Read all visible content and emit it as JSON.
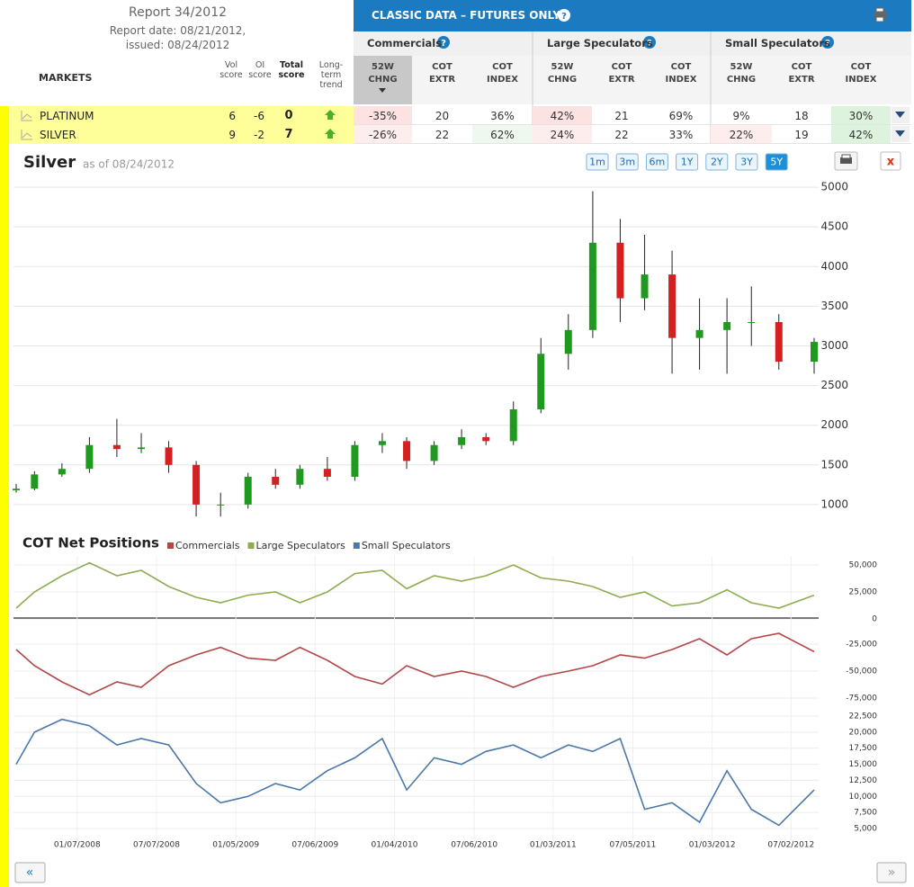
{
  "header": {
    "report": "Report 34/2012",
    "report_date": "Report date: 08/21/2012,",
    "issued": "issued: 08/24/2012",
    "markets": "MARKETS",
    "scores": [
      "Vol score",
      "OI score",
      "Total score",
      "Long-term trend"
    ]
  },
  "classic": {
    "title": "CLASSIC DATA – FUTURES ONLY",
    "groups": [
      "Commercials",
      "Large Speculators",
      "Small Speculators"
    ],
    "columns": [
      "52W CHNG",
      "COT EXTR",
      "COT INDEX"
    ]
  },
  "rows": [
    {
      "market": "PLATINUM",
      "vol": 6,
      "oi": -6,
      "total": 0,
      "cells": [
        "-35%",
        "20",
        "36%",
        "42%",
        "21",
        "69%",
        "9%",
        "18",
        "30%"
      ]
    },
    {
      "market": "SILVER",
      "vol": 9,
      "oi": -2,
      "total": 7,
      "cells": [
        "-26%",
        "22",
        "62%",
        "24%",
        "22",
        "33%",
        "22%",
        "19",
        "42%"
      ]
    }
  ],
  "price_chart": {
    "type": "candlestick",
    "title": "Silver",
    "as_of": "as of 08/24/2012",
    "ranges": [
      "1m",
      "3m",
      "6m",
      "1Y",
      "2Y",
      "3Y",
      "5Y"
    ],
    "active_range": 6,
    "x": [
      "2007-08-20",
      "2007-10-01",
      "2007-12-03",
      "2008-02-04",
      "2008-04-07",
      "2008-06-02",
      "2008-08-04",
      "2008-10-06",
      "2008-12-01",
      "2009-02-02",
      "2009-04-06",
      "2009-06-01",
      "2009-08-03",
      "2009-10-05",
      "2009-12-07",
      "2010-02-01",
      "2010-04-05",
      "2010-06-07",
      "2010-08-02",
      "2010-10-04",
      "2010-12-06",
      "2011-02-07",
      "2011-04-04",
      "2011-06-06",
      "2011-08-01",
      "2011-10-03",
      "2011-12-05",
      "2012-02-06",
      "2012-04-02",
      "2012-06-04",
      "2012-08-24"
    ],
    "open": [
      1180,
      1200,
      1380,
      1450,
      1750,
      1700,
      1720,
      1500,
      1000,
      1000,
      1350,
      1250,
      1450,
      1350,
      1750,
      1800,
      1550,
      1750,
      1850,
      1800,
      2200,
      2900,
      3200,
      4300,
      3600,
      3900,
      3100,
      3200,
      3300,
      3300,
      2800
    ],
    "high": [
      1260,
      1420,
      1520,
      1850,
      2080,
      1900,
      1800,
      1550,
      1150,
      1400,
      1450,
      1500,
      1600,
      1800,
      1900,
      1850,
      1800,
      1950,
      1900,
      2300,
      3100,
      3400,
      4950,
      4600,
      4400,
      4200,
      3600,
      3600,
      3750,
      3400,
      3100
    ],
    "low": [
      1150,
      1180,
      1350,
      1400,
      1600,
      1650,
      1400,
      850,
      850,
      950,
      1200,
      1200,
      1300,
      1300,
      1650,
      1450,
      1500,
      1700,
      1750,
      1750,
      2150,
      2700,
      3100,
      3300,
      3450,
      2650,
      2700,
      2650,
      3000,
      2700,
      2650
    ],
    "close": [
      1200,
      1380,
      1450,
      1750,
      1700,
      1720,
      1500,
      1000,
      1000,
      1350,
      1250,
      1450,
      1350,
      1750,
      1800,
      1550,
      1750,
      1850,
      1800,
      2200,
      2900,
      3200,
      4300,
      3600,
      3900,
      3100,
      3200,
      3300,
      3300,
      2800,
      3050
    ],
    "up_color": "#1f9a1f",
    "down_color": "#d42020",
    "xlim": [
      "2007-08-20",
      "2012-08-24"
    ],
    "ylim": [
      670,
      5035
    ],
    "yticks": [
      1000,
      1500,
      2000,
      2500,
      3000,
      3500,
      4000,
      4500,
      5000
    ],
    "grid": true
  },
  "cot_chart": {
    "type": "line",
    "title": "COT Net Positions",
    "x": [
      "2007-08-20",
      "2007-10-01",
      "2007-12-03",
      "2008-02-04",
      "2008-04-07",
      "2008-06-02",
      "2008-08-04",
      "2008-10-06",
      "2008-12-01",
      "2009-02-02",
      "2009-04-06",
      "2009-06-01",
      "2009-08-03",
      "2009-10-05",
      "2009-12-07",
      "2010-02-01",
      "2010-04-05",
      "2010-06-07",
      "2010-08-02",
      "2010-10-04",
      "2010-12-06",
      "2011-02-07",
      "2011-04-04",
      "2011-06-06",
      "2011-08-01",
      "2011-10-03",
      "2011-12-05",
      "2012-02-06",
      "2012-04-02",
      "2012-06-04",
      "2012-08-24"
    ],
    "xlim": [
      "2007-08-20",
      "2012-08-24"
    ],
    "xticks": [
      {
        "value": "2008-01-07",
        "label": "01/07/2008"
      },
      {
        "value": "2008-07-07",
        "label": "07/07/2008"
      },
      {
        "value": "2009-01-05",
        "label": "01/05/2009"
      },
      {
        "value": "2009-07-06",
        "label": "07/06/2009"
      },
      {
        "value": "2010-01-04",
        "label": "01/04/2010"
      },
      {
        "value": "2010-07-06",
        "label": "07/06/2010"
      },
      {
        "value": "2011-01-03",
        "label": "01/03/2011"
      },
      {
        "value": "2011-07-05",
        "label": "07/05/2011"
      },
      {
        "value": "2012-01-03",
        "label": "01/03/2012"
      },
      {
        "value": "2012-07-02",
        "label": "07/02/2012"
      }
    ],
    "panels": [
      {
        "name": "Large Speculators",
        "color": "#8fac52",
        "ylim": [
          0,
          61000
        ],
        "yticks": [
          0,
          {
            "value": 25000,
            "label": "25,000"
          },
          {
            "value": 50000,
            "label": "50,000"
          }
        ],
        "values": [
          10000,
          25000,
          40000,
          52000,
          40000,
          45000,
          30000,
          20000,
          15000,
          22000,
          25000,
          15000,
          25000,
          42000,
          45000,
          28000,
          40000,
          35000,
          40000,
          50000,
          38000,
          35000,
          30000,
          20000,
          25000,
          12000,
          15000,
          27000,
          15000,
          10000,
          22000
        ]
      },
      {
        "name": "Commercials",
        "color": "#b34747",
        "ylim": [
          -78000,
          -5000
        ],
        "yticks": [
          {
            "value": -75000,
            "label": "-75,000"
          },
          {
            "value": -50000,
            "label": "-50,000"
          },
          {
            "value": -25000,
            "label": "-25,000"
          }
        ],
        "values": [
          -30000,
          -45000,
          -60000,
          -72000,
          -60000,
          -65000,
          -45000,
          -35000,
          -28000,
          -38000,
          -40000,
          -28000,
          -40000,
          -55000,
          -62000,
          -45000,
          -55000,
          -50000,
          -55000,
          -65000,
          -55000,
          -50000,
          -45000,
          -35000,
          -38000,
          -30000,
          -20000,
          -35000,
          -20000,
          -15000,
          -32000
        ]
      },
      {
        "name": "Small Speculators",
        "color": "#4a78aa",
        "ylim": [
          3040,
          24040
        ],
        "yticks": [
          {
            "value": 5000,
            "label": "5,000"
          },
          {
            "value": 7500,
            "label": "7,500"
          },
          {
            "value": 10000,
            "label": "10,000"
          },
          {
            "value": 12500,
            "label": "12,500"
          },
          {
            "value": 15000,
            "label": "15,000"
          },
          {
            "value": 17500,
            "label": "17,500"
          },
          {
            "value": 20000,
            "label": "20,000"
          },
          {
            "value": 22500,
            "label": "22,500"
          }
        ],
        "values": [
          15000,
          20000,
          22000,
          21000,
          18000,
          19000,
          18000,
          12000,
          9000,
          10000,
          12000,
          11000,
          14000,
          16000,
          19000,
          11000,
          16000,
          15000,
          17000,
          18000,
          16000,
          18000,
          17000,
          19000,
          8000,
          9000,
          6000,
          14000,
          8000,
          5500,
          11000
        ]
      }
    ],
    "legend_order": [
      1,
      0,
      2
    ]
  }
}
